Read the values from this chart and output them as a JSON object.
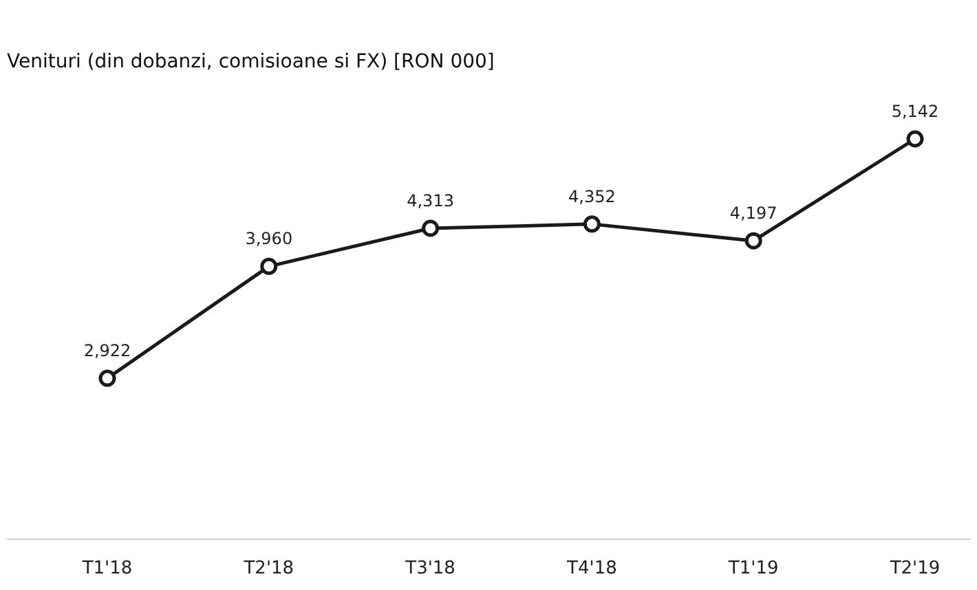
{
  "chart_data": {
    "type": "line",
    "title": "Venituri (din dobanzi, comisioane si FX) [RON 000]",
    "categories": [
      "T1'18",
      "T2'18",
      "T3'18",
      "T4'18",
      "T1'19",
      "T2'19"
    ],
    "series": [
      {
        "color": "#1a1a1a",
        "values": [
          2922,
          3960,
          4313,
          4352,
          4197,
          5142
        ],
        "value_labels": [
          "2,922",
          "3,960",
          "4,313",
          "4,352",
          "4,197",
          "5,142"
        ]
      }
    ],
    "marker": "circle",
    "line_style": "solid"
  }
}
